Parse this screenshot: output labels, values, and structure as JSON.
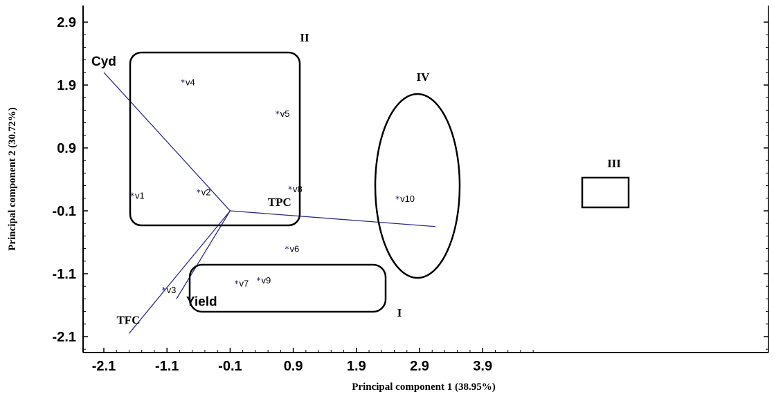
{
  "chart_data": {
    "type": "scatter",
    "title": "",
    "xlabel": "Principal component 1 (38.95%)",
    "ylabel": "Principal component 2 (30.72%)",
    "xlim": [
      -2.3,
      4.0
    ],
    "ylim": [
      -2.3,
      3.05
    ],
    "xticks": [
      "-2.1",
      "-1.1",
      "-0.1",
      "0.9",
      "1.9",
      "2.9",
      "3.9"
    ],
    "yticks": [
      "2.9",
      "1.9",
      "0.9",
      "-0.1",
      "-1.1",
      "-2.1"
    ],
    "points": [
      {
        "label": "v1",
        "x": -1.65,
        "y": 0.15
      },
      {
        "label": "v2",
        "x": -0.6,
        "y": 0.2
      },
      {
        "label": "v3",
        "x": -1.15,
        "y": -1.35
      },
      {
        "label": "v4",
        "x": -0.85,
        "y": 1.95
      },
      {
        "label": "v5",
        "x": 0.65,
        "y": 1.45
      },
      {
        "label": "v6",
        "x": 0.8,
        "y": -0.7
      },
      {
        "label": "v7",
        "x": 0.0,
        "y": -1.25
      },
      {
        "label": "v8",
        "x": 0.85,
        "y": 0.25
      },
      {
        "label": "v9",
        "x": 0.35,
        "y": -1.2
      },
      {
        "label": "v10",
        "x": 2.55,
        "y": 0.1
      }
    ],
    "loadings": [
      {
        "label": "Cyd",
        "x": -2.1,
        "y": 2.1
      },
      {
        "label": "TPC",
        "x": 3.15,
        "y": -0.35
      },
      {
        "label": "TFC",
        "x": -1.7,
        "y": -2.05
      },
      {
        "label": "Yield",
        "x": -0.95,
        "y": -1.5
      }
    ],
    "loading_origin": {
      "x": -0.1,
      "y": -0.1
    },
    "groups": [
      {
        "label": "I",
        "shape": "rounded-rect",
        "members": [
          "v3",
          "v7",
          "v9"
        ]
      },
      {
        "label": "II",
        "shape": "rounded-rect",
        "members": [
          "v1",
          "v2",
          "v4"
        ]
      },
      {
        "label": "III",
        "shape": "rect",
        "members": [
          "v10"
        ]
      },
      {
        "label": "IV",
        "shape": "ellipse",
        "members": [
          "v5",
          "v6",
          "v8"
        ]
      }
    ],
    "grid": false,
    "colors": {
      "points": "#1a1a5e",
      "lines": "#2b2b8c",
      "outline": "#000000"
    }
  }
}
